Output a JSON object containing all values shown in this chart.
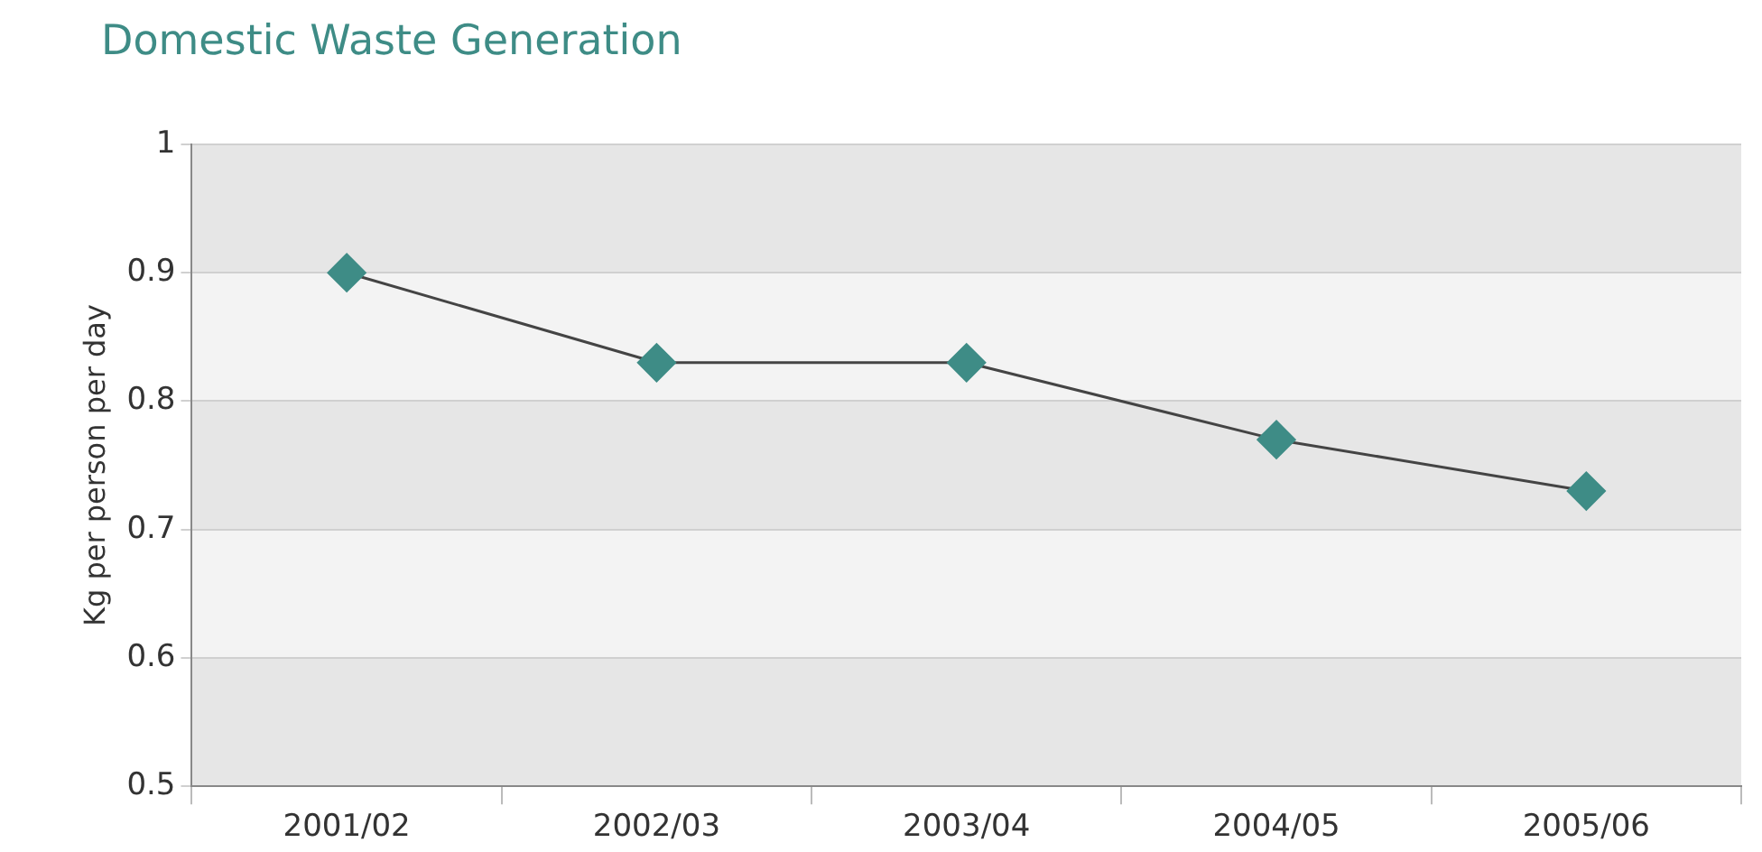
{
  "chart_data": {
    "type": "line",
    "title": "Domestic Waste Generation",
    "ylabel": "Kg per person per day",
    "categories": [
      "2001/02",
      "2002/03",
      "2003/04",
      "2004/05",
      "2005/06"
    ],
    "series": [
      {
        "color": "#3e8c86",
        "values": [
          0.9,
          0.83,
          0.83,
          0.77,
          0.73
        ]
      }
    ],
    "ylim": [
      0.5,
      1
    ],
    "yticks": [
      0.5,
      0.6,
      0.7,
      0.8,
      0.9,
      1
    ],
    "grid": "y",
    "marker": "diamond",
    "line_style": "solid",
    "legend": false
  }
}
